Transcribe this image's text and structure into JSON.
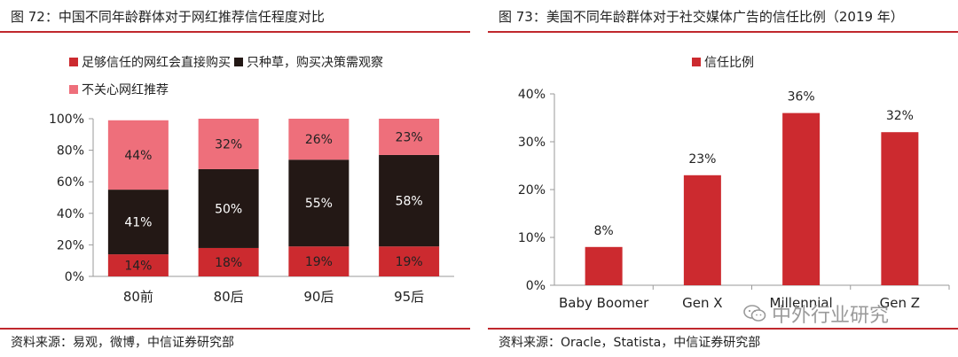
{
  "left": {
    "title": "图 72：中国不同年龄群体对于网红推荐信任程度对比",
    "source": "资料来源：易观，微博，中信证券研究部"
  },
  "right": {
    "title": "图 73：美国不同年龄群体对于社交媒体广告的信任比例（2019 年）",
    "source": "资料来源：Oracle，Statista，中信证券研究部",
    "watermark": "中外行业研究",
    "watermark_icon": "wechat-icon"
  },
  "colors": {
    "red": "#cc2a2f",
    "black": "#231815",
    "pink": "#ee6f7b",
    "rule": "#c0282d"
  },
  "chart_data": [
    {
      "type": "bar",
      "stacked": true,
      "categories": [
        "80前",
        "80后",
        "90后",
        "95后"
      ],
      "series": [
        {
          "name": "足够信任的网红会直接购买",
          "color": "#cc2a2f",
          "values": [
            14,
            18,
            19,
            19
          ],
          "labels": [
            "14%",
            "18%",
            "19%",
            "19%"
          ]
        },
        {
          "name": "只种草，购买决策需观察",
          "color": "#231815",
          "values": [
            41,
            50,
            55,
            58
          ],
          "labels": [
            "41%",
            "50%",
            "55%",
            "58%"
          ]
        },
        {
          "name": "不关心网红推荐",
          "color": "#ee6f7b",
          "values": [
            44,
            32,
            26,
            23
          ],
          "labels": [
            "44%",
            "32%",
            "26%",
            "23%"
          ]
        }
      ],
      "ylim": [
        0,
        100
      ],
      "yticks": [
        "0%",
        "20%",
        "40%",
        "60%",
        "80%",
        "100%"
      ],
      "legend": "top-left",
      "grid": false
    },
    {
      "type": "bar",
      "categories": [
        "Baby Boomer",
        "Gen X",
        "Millennial",
        "Gen Z"
      ],
      "series": [
        {
          "name": "信任比例",
          "color": "#cc2a2f",
          "values": [
            8,
            23,
            36,
            32
          ],
          "labels": [
            "8%",
            "23%",
            "36%",
            "32%"
          ]
        }
      ],
      "ylim": [
        0,
        40
      ],
      "yticks": [
        "0%",
        "10%",
        "20%",
        "30%",
        "40%"
      ],
      "legend": "top-left",
      "grid": false
    }
  ]
}
